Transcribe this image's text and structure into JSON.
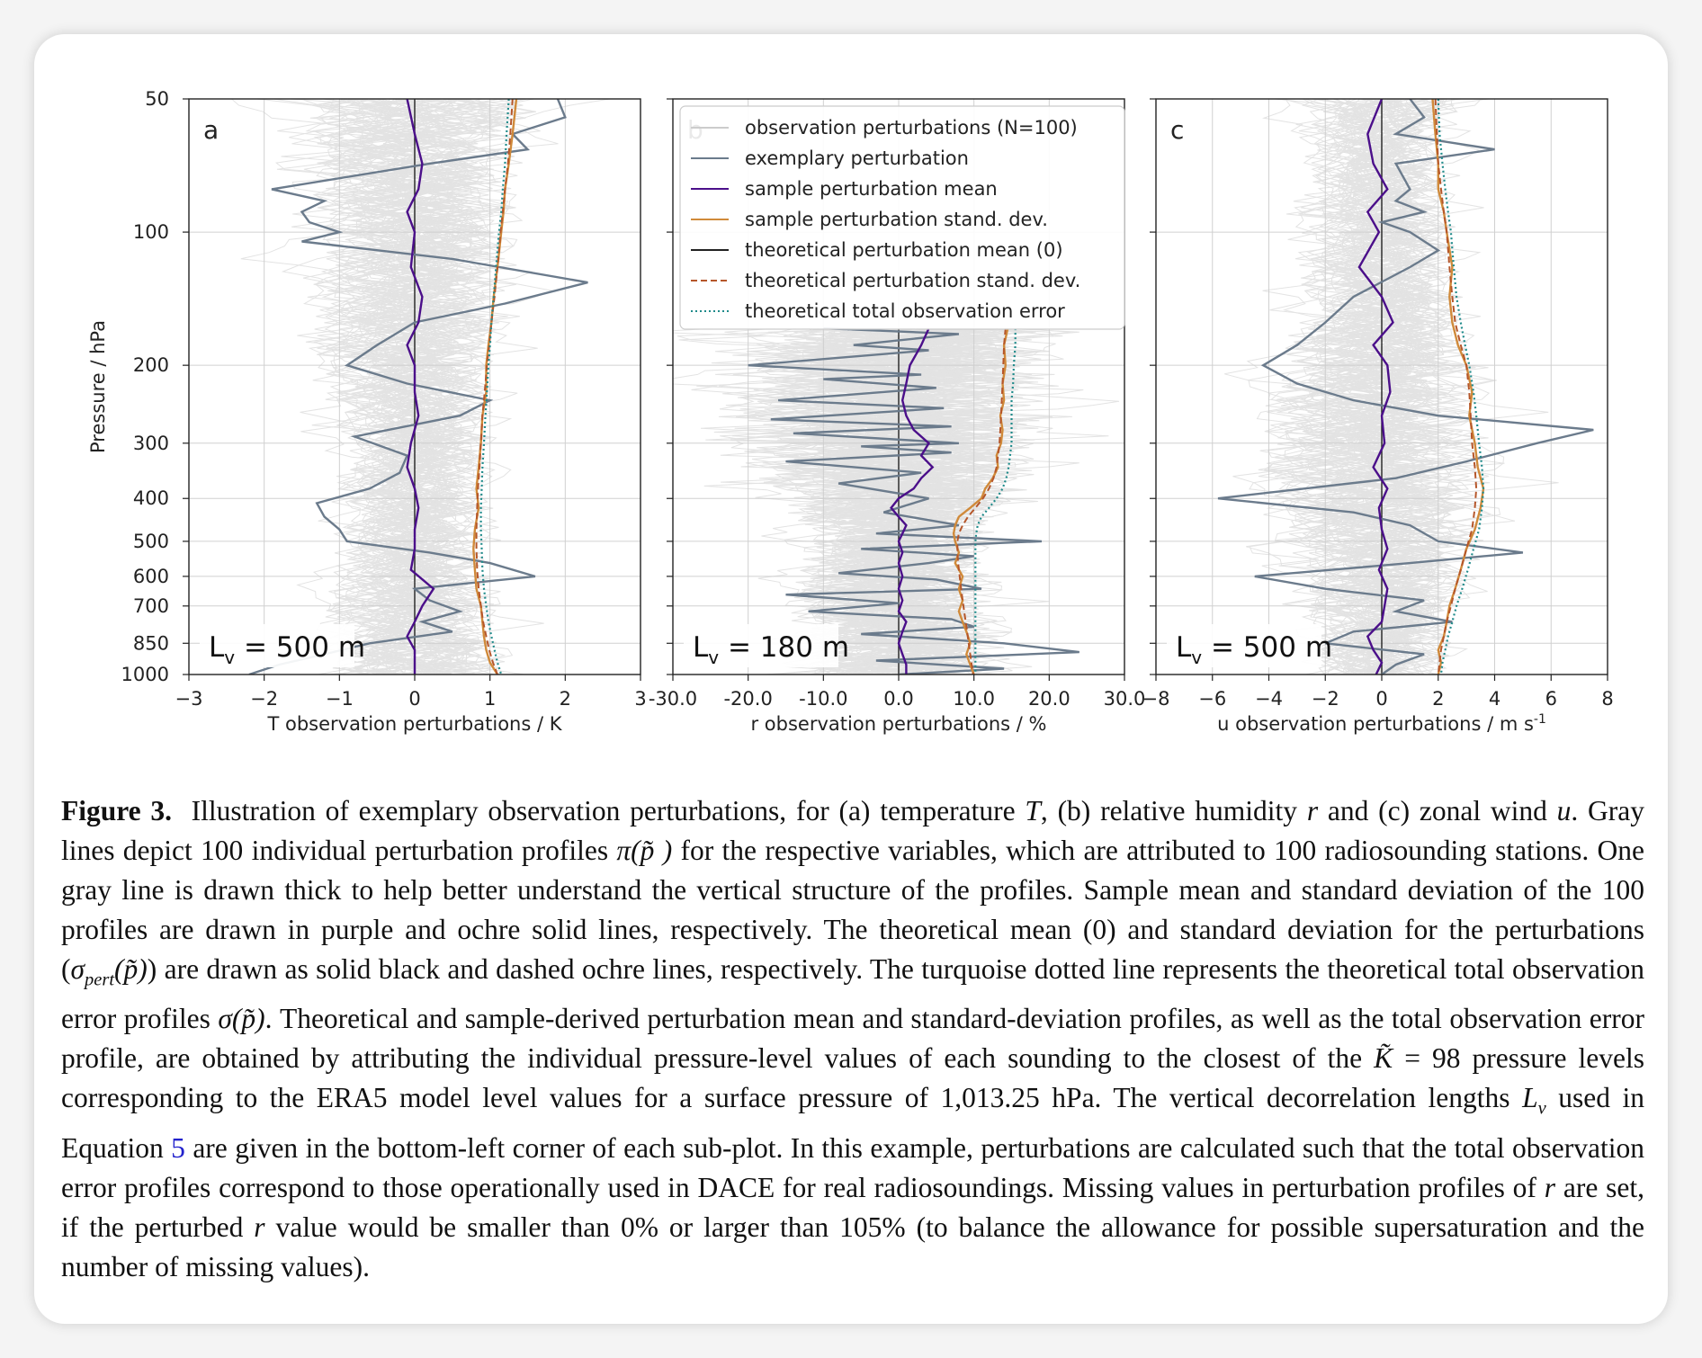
{
  "figure": {
    "y_axis_label": "Pressure / hPa",
    "y_ticks": [
      50,
      100,
      200,
      300,
      400,
      500,
      600,
      700,
      850,
      1000
    ],
    "legend": [
      {
        "label": "observation perturbations (N=100)",
        "color": "#cccccc",
        "style": "solid"
      },
      {
        "label": "exemplary perturbation",
        "color": "#6b7b8c",
        "style": "solid"
      },
      {
        "label": "sample perturbation mean",
        "color": "#4b0f8a",
        "style": "solid"
      },
      {
        "label": "sample perturbation stand. dev.",
        "color": "#d08a3a",
        "style": "solid"
      },
      {
        "label": "theoretical perturbation mean (0)",
        "color": "#222222",
        "style": "solid"
      },
      {
        "label": "theoretical perturbation stand. dev.",
        "color": "#b5562a",
        "style": "dashed"
      },
      {
        "label": "theoretical total observation error",
        "color": "#1f8a8a",
        "style": "dotted"
      }
    ],
    "colors": {
      "ensemble": "#cdcdcd",
      "exemplary": "#6b7b8c",
      "mean": "#4b0f8a",
      "sample_std": "#d08a3a",
      "theory_mean": "#222222",
      "theory_std": "#b5562a",
      "total_error": "#1f8a8a",
      "grid": "#d0d0d0"
    }
  },
  "chart_data": [
    {
      "type": "line",
      "panel_letter": "a",
      "xlabel_main": "T observation perturbations / K",
      "xlabel_sup": "",
      "annotation": "L",
      "annotation_sub": "v",
      "annotation_rest": " = 500 m",
      "xlim": [
        -3,
        3
      ],
      "ylim": [
        1000,
        50
      ],
      "yscale": "log",
      "x_ticks": [
        -3,
        -2,
        -1,
        0,
        1,
        2,
        3
      ],
      "x_tick_labels": [
        "−3",
        "−2",
        "−1",
        "0",
        "1",
        "2",
        "3"
      ],
      "mean_pressure": [
        50,
        60,
        70,
        80,
        90,
        100,
        120,
        140,
        160,
        180,
        200,
        230,
        260,
        300,
        340,
        380,
        420,
        470,
        520,
        580,
        640,
        700,
        760,
        820,
        880,
        940,
        1000
      ],
      "mean": [
        -0.1,
        0.0,
        0.1,
        0.05,
        -0.1,
        0.0,
        -0.05,
        0.1,
        0.05,
        -0.1,
        0.0,
        0.0,
        0.05,
        -0.05,
        -0.1,
        0.0,
        0.05,
        0.0,
        0.0,
        -0.05,
        0.25,
        0.1,
        0.0,
        -0.1,
        0.0,
        0.0,
        0.0
      ],
      "sample_std": [
        1.35,
        1.3,
        1.25,
        1.2,
        1.18,
        1.15,
        1.1,
        1.05,
        1.02,
        0.98,
        0.95,
        0.95,
        0.9,
        0.88,
        0.85,
        0.82,
        0.85,
        0.8,
        0.78,
        0.8,
        0.82,
        0.88,
        0.9,
        0.92,
        0.95,
        1.0,
        1.1
      ],
      "theory_std": [
        1.3,
        1.27,
        1.24,
        1.2,
        1.17,
        1.14,
        1.1,
        1.06,
        1.02,
        0.99,
        0.96,
        0.93,
        0.9,
        0.88,
        0.86,
        0.84,
        0.83,
        0.82,
        0.82,
        0.83,
        0.85,
        0.88,
        0.91,
        0.95,
        0.99,
        1.04,
        1.1
      ],
      "total_error": [
        1.25,
        1.22,
        1.2,
        1.17,
        1.15,
        1.12,
        1.08,
        1.05,
        1.02,
        1.0,
        0.98,
        0.96,
        0.94,
        0.92,
        0.9,
        0.89,
        0.88,
        0.88,
        0.89,
        0.9,
        0.92,
        0.95,
        0.98,
        1.02,
        1.06,
        1.1,
        1.15
      ],
      "exemplary_pressure": [
        50,
        55,
        60,
        65,
        70,
        80,
        85,
        90,
        95,
        100,
        105,
        115,
        130,
        145,
        160,
        180,
        200,
        220,
        240,
        260,
        290,
        320,
        350,
        380,
        410,
        440,
        470,
        500,
        530,
        560,
        600,
        640,
        680,
        720,
        760,
        800,
        850,
        900,
        950,
        1000
      ],
      "exemplary": [
        1.9,
        2.0,
        1.3,
        1.5,
        0.2,
        -1.9,
        -1.2,
        -1.5,
        -1.4,
        -1.0,
        -1.5,
        0.5,
        2.3,
        1.2,
        0.0,
        -0.5,
        -0.9,
        -0.1,
        1.0,
        0.6,
        -0.8,
        -0.1,
        -0.2,
        -0.6,
        -1.3,
        -1.2,
        -1.0,
        -0.9,
        0.2,
        1.0,
        1.6,
        0.0,
        0.2,
        0.6,
        0.1,
        0.5,
        -0.6,
        -1.2,
        -1.8,
        -2.2
      ]
    },
    {
      "type": "line",
      "panel_letter": "b",
      "xlabel_main": "r observation perturbations / %",
      "xlabel_sup": "",
      "annotation": "L",
      "annotation_sub": "v",
      "annotation_rest": " = 180 m",
      "xlim": [
        -30,
        30
      ],
      "ylim": [
        1000,
        50
      ],
      "yscale": "log",
      "data_top_pressure": 165,
      "x_ticks": [
        -30,
        -20,
        -10,
        0,
        10,
        20,
        30
      ],
      "x_tick_labels": [
        "-30.0",
        "-20.0",
        "-10.0",
        "0.0",
        "10.0",
        "20.0",
        "30.0"
      ],
      "mean_pressure": [
        165,
        180,
        200,
        220,
        240,
        260,
        280,
        300,
        320,
        340,
        360,
        380,
        400,
        420,
        440,
        460,
        480,
        500,
        530,
        560,
        600,
        640,
        680,
        720,
        760,
        800,
        850,
        900,
        950,
        1000
      ],
      "mean": [
        4.0,
        3.0,
        1.5,
        1.0,
        0.5,
        1.0,
        2.0,
        4.0,
        3.0,
        4.5,
        3.0,
        2.0,
        0.0,
        -1.0,
        0.0,
        1.0,
        0.5,
        0.0,
        0.5,
        0.0,
        0.5,
        0.0,
        0.5,
        0.0,
        1.0,
        0.5,
        0.0,
        0.5,
        1.0,
        1.0
      ],
      "sample_std": [
        14.5,
        14.0,
        14.2,
        13.8,
        14.0,
        13.5,
        13.8,
        13.6,
        13.0,
        13.2,
        12.5,
        11.5,
        11.0,
        9.5,
        8.0,
        7.5,
        7.3,
        7.5,
        8.0,
        7.5,
        8.5,
        8.0,
        8.5,
        8.0,
        8.5,
        9.0,
        9.5,
        9.0,
        9.5,
        10.0
      ],
      "theory_std": [
        14.2,
        14.0,
        13.9,
        13.8,
        13.7,
        13.6,
        13.5,
        13.4,
        13.2,
        13.0,
        12.6,
        12.0,
        11.2,
        10.2,
        9.2,
        8.5,
        8.0,
        7.8,
        7.8,
        7.9,
        8.1,
        8.3,
        8.5,
        8.7,
        8.9,
        9.1,
        9.3,
        9.5,
        9.7,
        9.9
      ],
      "total_error": [
        15.5,
        15.5,
        15.3,
        15.2,
        15.0,
        15.0,
        15.0,
        15.0,
        14.8,
        14.6,
        14.3,
        13.8,
        13.0,
        12.0,
        11.0,
        10.5,
        10.3,
        10.2,
        10.2,
        10.2,
        10.2,
        10.2,
        10.2,
        10.2,
        10.2,
        10.2,
        10.2,
        10.2,
        10.2,
        10.2
      ],
      "exemplary_pressure": [
        165,
        170,
        180,
        185,
        200,
        210,
        215,
        225,
        240,
        250,
        265,
        275,
        285,
        300,
        305,
        315,
        330,
        350,
        370,
        400,
        430,
        460,
        480,
        500,
        520,
        540,
        560,
        590,
        610,
        640,
        660,
        690,
        720,
        750,
        780,
        810,
        850,
        890,
        930,
        970,
        1000
      ],
      "exemplary": [
        -10,
        8,
        -6,
        4,
        -20,
        3,
        -10,
        5,
        -16,
        6,
        -17,
        7,
        -14,
        8,
        -5,
        7,
        -15,
        3,
        -8,
        4,
        -2,
        8,
        -3,
        19,
        -5,
        10,
        4,
        -8,
        5,
        11,
        -15,
        0,
        -12,
        7,
        10,
        -5,
        14,
        24,
        -3,
        14,
        0
      ]
    },
    {
      "type": "line",
      "panel_letter": "c",
      "xlabel_main": "u observation perturbations /  m s",
      "xlabel_sup": "-1",
      "annotation": "L",
      "annotation_sub": "v",
      "annotation_rest": " = 500 m",
      "xlim": [
        -8,
        8
      ],
      "ylim": [
        1000,
        50
      ],
      "yscale": "log",
      "x_ticks": [
        -8,
        -6,
        -4,
        -2,
        0,
        2,
        4,
        6,
        8
      ],
      "x_tick_labels": [
        "−8",
        "−6",
        "−4",
        "−2",
        "0",
        "2",
        "4",
        "6",
        "8"
      ],
      "mean_pressure": [
        50,
        60,
        70,
        80,
        90,
        100,
        120,
        140,
        160,
        180,
        200,
        230,
        260,
        300,
        340,
        380,
        420,
        470,
        520,
        580,
        640,
        700,
        760,
        820,
        880,
        940,
        1000
      ],
      "mean": [
        0.0,
        -0.5,
        -0.3,
        0.2,
        -0.5,
        -0.1,
        -0.8,
        0.0,
        0.4,
        -0.3,
        0.2,
        0.3,
        0.0,
        0.1,
        -0.3,
        0.2,
        -0.1,
        0.0,
        0.2,
        -0.1,
        0.2,
        0.1,
        0.0,
        -0.5,
        -0.3,
        0.0,
        -0.2
      ],
      "sample_std": [
        1.8,
        1.9,
        2.0,
        2.0,
        2.2,
        2.3,
        2.5,
        2.4,
        2.5,
        2.7,
        3.0,
        3.2,
        3.1,
        3.3,
        3.4,
        3.6,
        3.5,
        3.3,
        3.0,
        2.8,
        2.6,
        2.4,
        2.3,
        2.2,
        2.0,
        2.1,
        2.0
      ],
      "theory_std": [
        1.9,
        1.95,
        2.0,
        2.1,
        2.2,
        2.3,
        2.4,
        2.5,
        2.6,
        2.8,
        3.0,
        3.1,
        3.15,
        3.2,
        3.3,
        3.35,
        3.3,
        3.2,
        3.0,
        2.8,
        2.6,
        2.45,
        2.3,
        2.2,
        2.1,
        2.05,
        2.0
      ],
      "total_error": [
        2.0,
        2.05,
        2.15,
        2.25,
        2.35,
        2.45,
        2.55,
        2.65,
        2.8,
        2.95,
        3.1,
        3.25,
        3.35,
        3.45,
        3.55,
        3.6,
        3.55,
        3.45,
        3.25,
        3.05,
        2.85,
        2.65,
        2.5,
        2.35,
        2.25,
        2.15,
        2.1
      ],
      "exemplary_pressure": [
        50,
        55,
        60,
        65,
        70,
        80,
        85,
        90,
        95,
        100,
        110,
        120,
        140,
        160,
        180,
        200,
        220,
        240,
        260,
        280,
        300,
        330,
        360,
        400,
        430,
        460,
        500,
        530,
        560,
        600,
        640,
        680,
        720,
        760,
        800,
        850,
        900,
        950,
        1000
      ],
      "exemplary": [
        1.0,
        1.5,
        0.5,
        4.0,
        0.5,
        1.0,
        0.5,
        1.5,
        0.0,
        1.0,
        2.0,
        1.0,
        -1.0,
        -2.0,
        -3.0,
        -4.2,
        -3.0,
        -1.0,
        2.0,
        7.5,
        5.5,
        3.0,
        0.5,
        -5.8,
        -1.0,
        1.0,
        2.0,
        5.0,
        1.0,
        -4.5,
        -2.0,
        1.5,
        0.5,
        2.5,
        -1.0,
        -2.0,
        1.5,
        0.5,
        0.0
      ]
    }
  ],
  "caption": {
    "figure_label": "Figure 3.",
    "p1": "Illustration of exemplary observation perturbations, for (a) temperature ",
    "var_T": "T",
    "p2": ", (b) relative humidity ",
    "var_r": "r",
    "p3": " and (c) zonal wind ",
    "var_u": "u",
    "p4": ". Gray lines depict 100 individual perturbation profiles ",
    "pi_expr": "π(p̃ )",
    "p5": " for the respective variables, which are attributed to 100 radiosounding stations. One gray line is drawn thick to help better understand the vertical structure of the profiles. Sample mean and standard deviation of the 100 profiles are drawn in purple and ochre solid lines, respectively. The theoretical mean (0) and standard deviation for the perturbations (",
    "sigma": "σ",
    "sigma_sub": "pert",
    "sigma_arg": "(p̃)",
    "p6": ") are drawn as solid black and dashed ochre lines, respectively. The turquoise dotted line represents the theoretical total observation error profiles ",
    "sigma_expr": "σ(p̃)",
    "p7": ". Theoretical and sample-derived perturbation mean and standard-deviation profiles, as well as the total observation error profile, are obtained by attributing the individual pressure-level values of each sounding to the closest of the ",
    "k_expr": "K̃",
    "p8": " = 98 pressure levels corresponding to the ERA5 model level values for a surface pressure of 1,013.25 hPa. The vertical decorrelation lengths ",
    "lv": "L",
    "lv_sub": "v",
    "p9": " used in Equation ",
    "eq_ref": "5",
    "p10": " are given in the bottom-left corner of each sub-plot. In this example, perturbations are calculated such that the total observation error profiles correspond to those operationally used in DACE for real radiosoundings. Missing values in perturbation profiles of ",
    "var_r2": "r",
    "p11": " are set, if the perturbed ",
    "var_r3": "r",
    "p12": " value would be smaller than 0% or larger than 105% (to balance the allowance for possible supersaturation and the number of missing values)."
  }
}
